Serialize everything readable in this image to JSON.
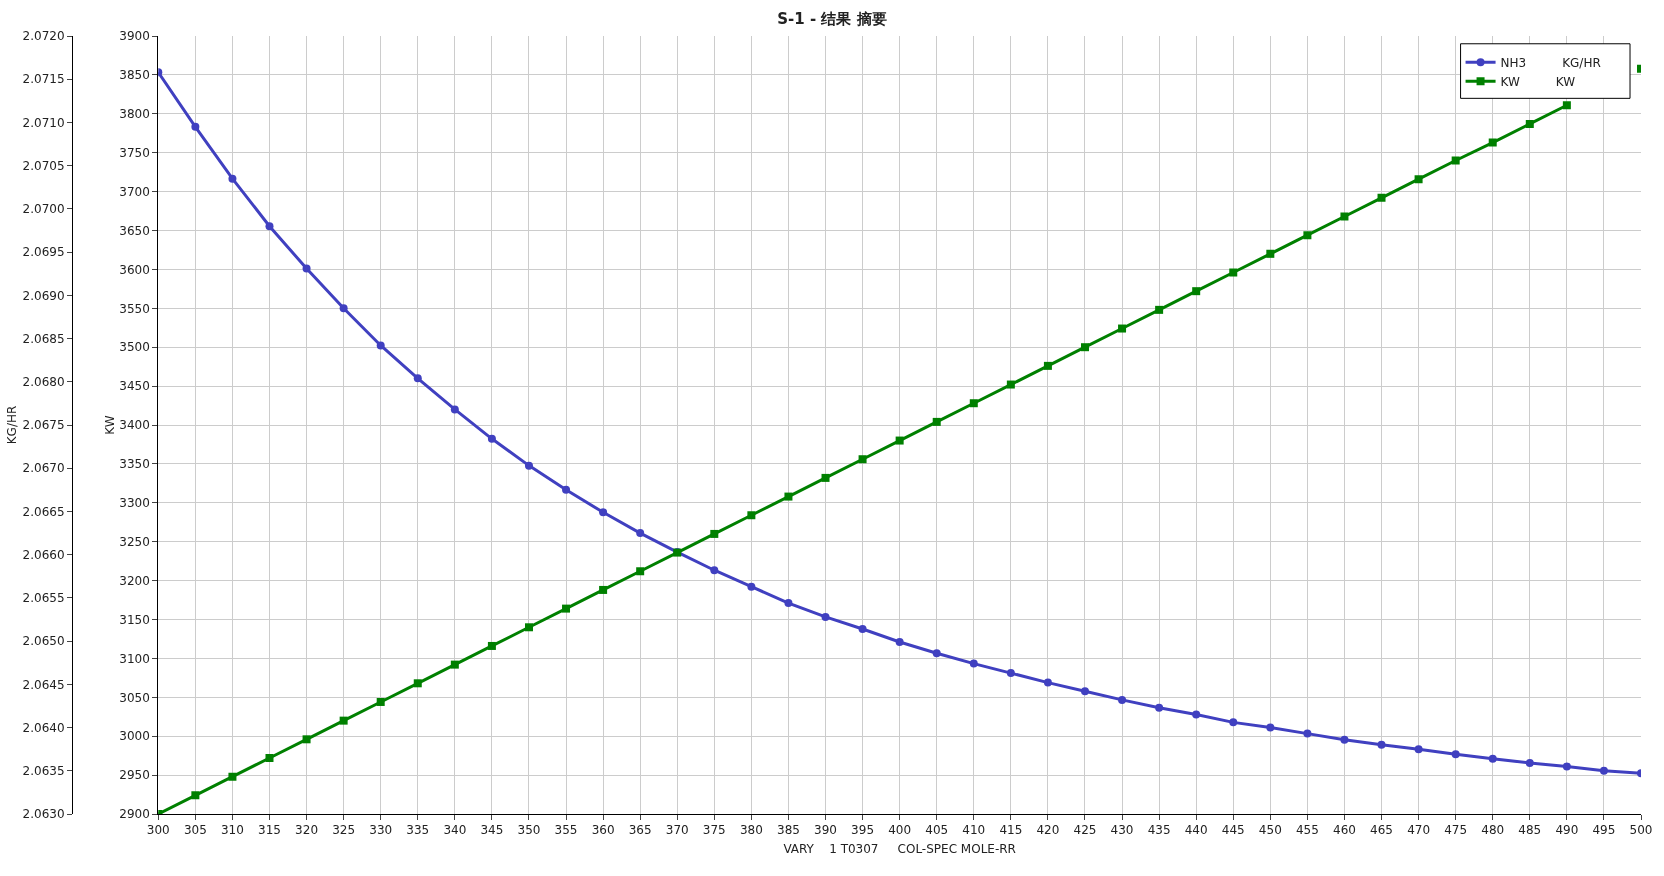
{
  "chart_data": {
    "type": "line",
    "title": "S-1 - 结果 摘要",
    "xlabel": "VARY    1 T0307     COL-SPEC MOLE-RR",
    "ylabel": "KG/HR",
    "y2label": "KW",
    "x": [
      300,
      305,
      310,
      315,
      320,
      325,
      330,
      335,
      340,
      345,
      350,
      355,
      360,
      365,
      370,
      375,
      380,
      385,
      390,
      395,
      400,
      405,
      410,
      415,
      420,
      425,
      430,
      435,
      440,
      445,
      450,
      455,
      460,
      465,
      470,
      475,
      480,
      485,
      490,
      495,
      500
    ],
    "series": [
      {
        "name": "NH3 KG/HR",
        "color": "#4040c0",
        "marker": "circle",
        "values": [
          2.07158,
          2.07095,
          2.07035,
          2.0698,
          2.06931,
          2.06885,
          2.06842,
          2.06804,
          2.06768,
          2.06734,
          2.06703,
          2.06675,
          2.06649,
          2.06625,
          2.06603,
          2.06582,
          2.06563,
          2.06544,
          2.06528,
          2.06514,
          2.06499,
          2.06486,
          2.06474,
          2.06463,
          2.06452,
          2.06442,
          2.06432,
          2.06423,
          2.06415,
          2.06406,
          2.064,
          2.06393,
          2.06386,
          2.0638,
          2.06375,
          2.06369,
          2.06364,
          2.06359,
          2.06355,
          2.0635,
          2.06347
        ]
      },
      {
        "name": "KW KW",
        "color": "#008000",
        "marker": "square",
        "axis": "y2",
        "values": [
          2900,
          2924,
          2948,
          2972,
          2996,
          3020,
          3044,
          3068,
          3092,
          3116,
          3140,
          3164,
          3188,
          3212,
          3236,
          3260,
          3284,
          3308,
          3332,
          3356,
          3380,
          3404,
          3428,
          3452,
          3476,
          3500,
          3524,
          3548,
          3572,
          3596,
          3620,
          3644,
          3668,
          3692,
          3716,
          3740,
          3763,
          3787,
          3811,
          null,
          3858
        ]
      }
    ],
    "xlim": [
      300,
      500
    ],
    "xticks": [
      300,
      305,
      310,
      315,
      320,
      325,
      330,
      335,
      340,
      345,
      350,
      355,
      360,
      365,
      370,
      375,
      380,
      385,
      390,
      395,
      400,
      405,
      410,
      415,
      420,
      425,
      430,
      435,
      440,
      445,
      450,
      455,
      460,
      465,
      470,
      475,
      480,
      485,
      490,
      495,
      500
    ],
    "ylim": [
      2.063,
      2.072
    ],
    "yticks": [
      {
        "value": 2.063,
        "label": "2.0630"
      },
      {
        "value": 2.0635,
        "label": "2.0635"
      },
      {
        "value": 2.064,
        "label": "2.0640"
      },
      {
        "value": 2.0645,
        "label": "2.0645"
      },
      {
        "value": 2.065,
        "label": "2.0650"
      },
      {
        "value": 2.0655,
        "label": "2.0655"
      },
      {
        "value": 2.066,
        "label": "2.0660"
      },
      {
        "value": 2.0665,
        "label": "2.0665"
      },
      {
        "value": 2.067,
        "label": "2.0670"
      },
      {
        "value": 2.0675,
        "label": "2.0675"
      },
      {
        "value": 2.068,
        "label": "2.0680"
      },
      {
        "value": 2.0685,
        "label": "2.0685"
      },
      {
        "value": 2.069,
        "label": "2.0690"
      },
      {
        "value": 2.0695,
        "label": "2.0695"
      },
      {
        "value": 2.07,
        "label": "2.0700"
      },
      {
        "value": 2.0705,
        "label": "2.0705"
      },
      {
        "value": 2.071,
        "label": "2.0710"
      },
      {
        "value": 2.0715,
        "label": "2.0715"
      },
      {
        "value": 2.072,
        "label": "2.0720"
      }
    ],
    "y2lim": [
      2900,
      3900
    ],
    "y2ticks": [
      2900,
      2950,
      3000,
      3050,
      3100,
      3150,
      3200,
      3250,
      3300,
      3350,
      3400,
      3450,
      3500,
      3550,
      3600,
      3650,
      3700,
      3750,
      3800,
      3850,
      3900
    ],
    "grid": true,
    "legend": "top right",
    "line_style": "solid"
  }
}
